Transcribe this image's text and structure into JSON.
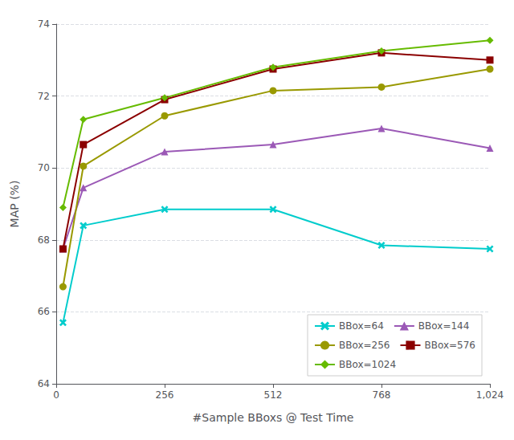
{
  "chart_data": {
    "type": "line",
    "xlabel": "#Sample BBoxs @ Test Time",
    "ylabel": "MAP (%)",
    "xlim": [
      0,
      1024
    ],
    "ylim": [
      64,
      74
    ],
    "xticks": [
      0,
      256,
      512,
      768,
      {
        "value": 1024,
        "label": "1,024"
      }
    ],
    "yticks": [
      64,
      66,
      68,
      70,
      72,
      74
    ],
    "grid": "y",
    "legend": "lower right",
    "series": [
      {
        "name": "BBox=64",
        "color": "#00CCCC",
        "marker": "x",
        "x": [
          16,
          64,
          256,
          512,
          768,
          1024
        ],
        "values": [
          65.7,
          68.4,
          68.85,
          68.85,
          67.85,
          67.75
        ]
      },
      {
        "name": "BBox=144",
        "color": "#9B59B6",
        "marker": "triangle",
        "x": [
          16,
          64,
          256,
          512,
          768,
          1024
        ],
        "values": [
          67.75,
          69.45,
          70.45,
          70.65,
          71.1,
          70.55
        ]
      },
      {
        "name": "BBox=256",
        "color": "#999900",
        "marker": "circle",
        "x": [
          16,
          64,
          256,
          512,
          768,
          1024
        ],
        "values": [
          66.7,
          70.05,
          71.45,
          72.15,
          72.25,
          72.75
        ]
      },
      {
        "name": "BBox=576",
        "color": "#8B0000",
        "marker": "square",
        "x": [
          16,
          64,
          256,
          512,
          768,
          1024
        ],
        "values": [
          67.75,
          70.65,
          71.9,
          72.75,
          73.2,
          73.0
        ]
      },
      {
        "name": "BBox=1024",
        "color": "#66BB00",
        "marker": "diamond",
        "x": [
          16,
          64,
          256,
          512,
          768,
          1024
        ],
        "values": [
          68.9,
          71.35,
          71.95,
          72.8,
          73.25,
          73.55
        ]
      }
    ]
  }
}
